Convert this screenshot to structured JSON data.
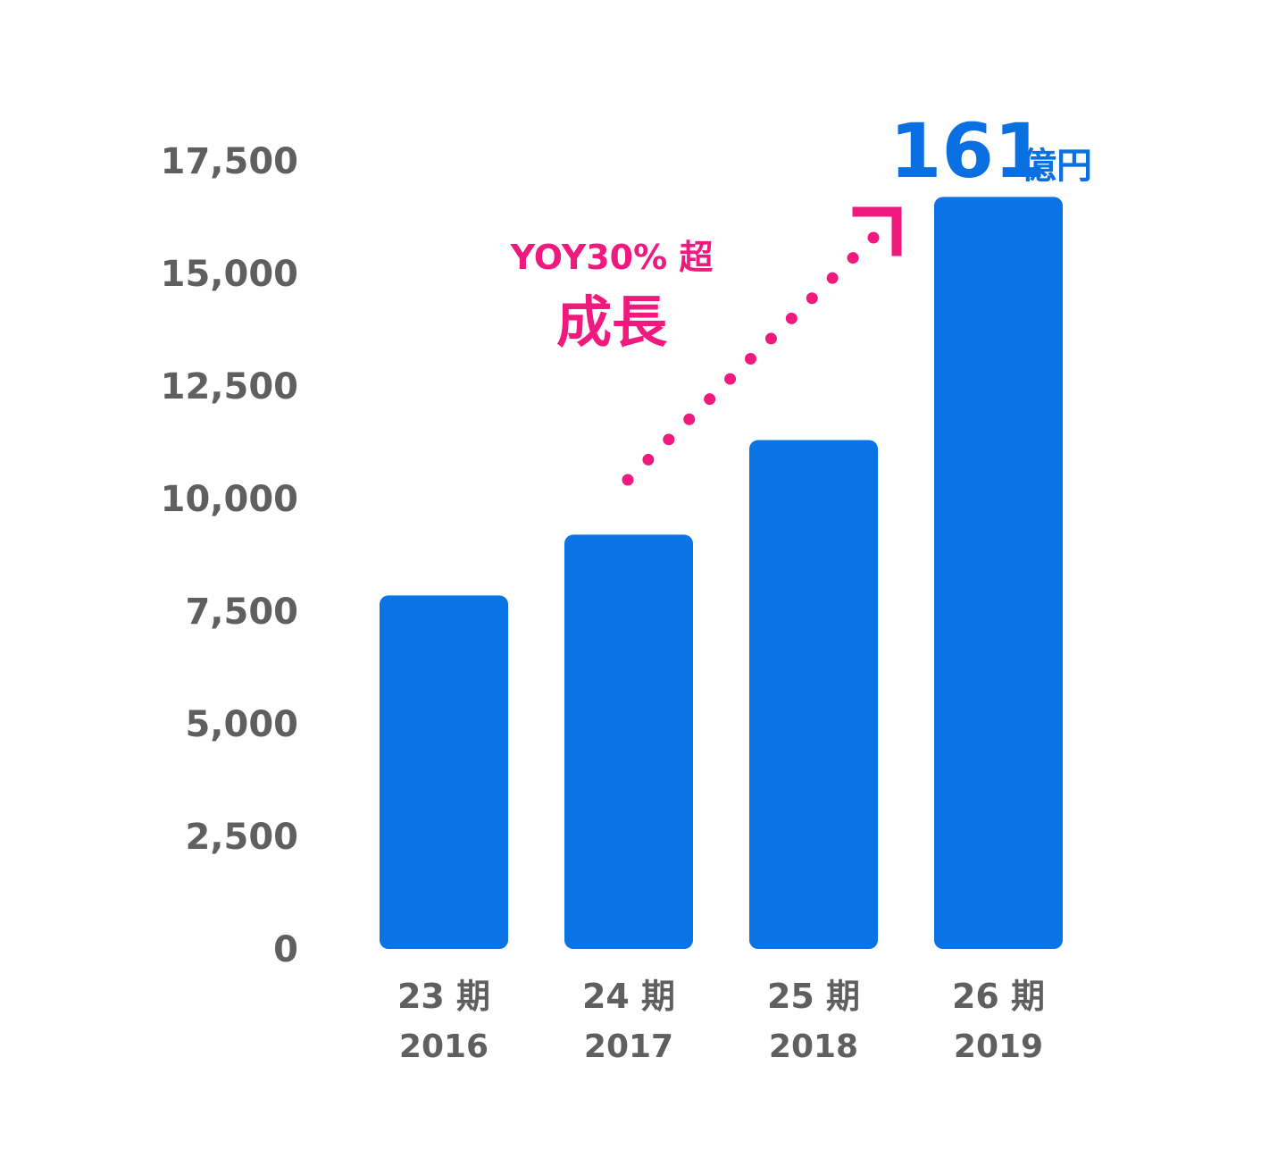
{
  "chart_data": {
    "type": "bar",
    "categories": [
      "23 期",
      "24 期",
      "25 期",
      "26 期"
    ],
    "years": [
      "2016",
      "2017",
      "2018",
      "2019"
    ],
    "values": [
      7850,
      9200,
      11300,
      16700
    ],
    "ylim": [
      0,
      17500
    ],
    "yticks": [
      0,
      2500,
      5000,
      7500,
      10000,
      12500,
      15000,
      17500
    ],
    "ytick_labels": [
      "0",
      "2,500",
      "5,000",
      "7,500",
      "10,000",
      "12,500",
      "15,000",
      "17,500"
    ],
    "grid": false,
    "bar_color": "#0a74e6",
    "annotations": {
      "growth_line1": "YOY30% 超",
      "growth_line2": "成長",
      "growth_color": "#f0197d",
      "callout_value": "161",
      "callout_unit": "億円",
      "callout_color": "#0a6fe0"
    }
  }
}
